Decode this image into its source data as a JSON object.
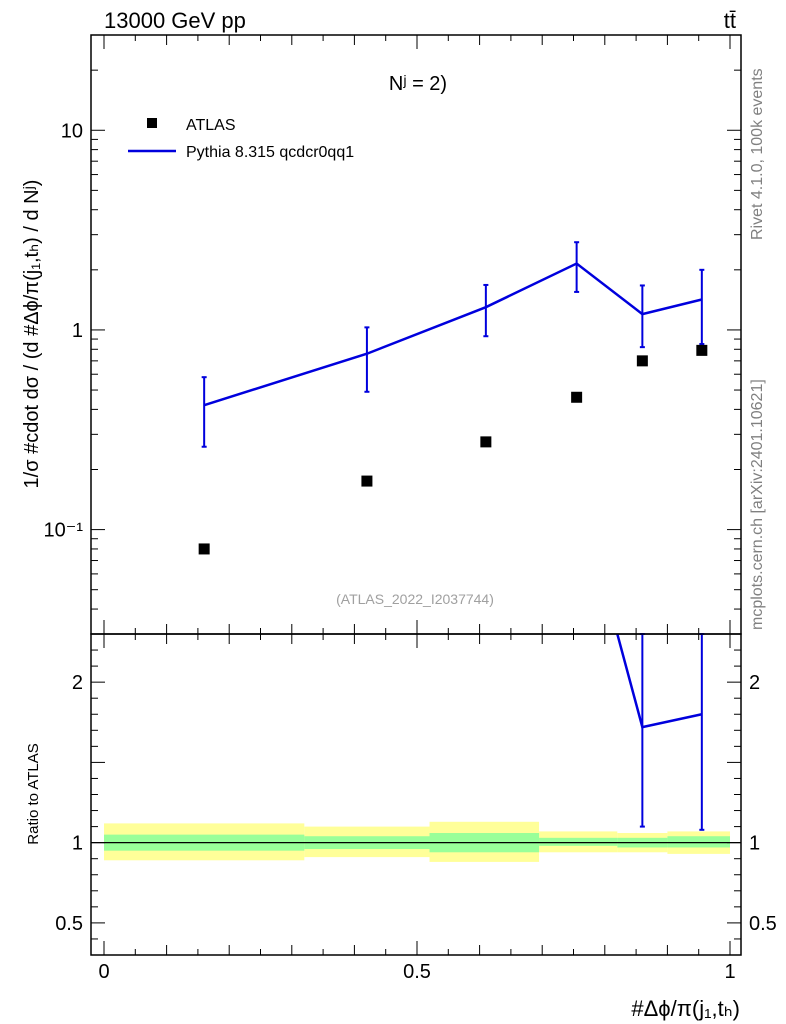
{
  "header": {
    "left": "13000 GeV pp",
    "right": "tt̄"
  },
  "side_labels": {
    "rivet": "Rivet 4.1.0,  100k events",
    "mcplots": "mcplots.cern.ch [arXiv:2401.10621]"
  },
  "chart_data": {
    "type": "scatter",
    "title": "Nʲ = 2)",
    "watermark": "(ATLAS_2022_I2037744)",
    "ylabel": "1/σ #cdot dσ / (d #Δϕ/π(j₁,tₕ) / d Nʲ)",
    "xlabel": "#Δϕ/π(j₁,tₕ)",
    "xlim": [
      0,
      1
    ],
    "ylim": [
      0.03,
      30
    ],
    "yscale": "log",
    "legend": {
      "placement": "top-left",
      "entries": [
        "ATLAS",
        "Pythia 8.315 qcdcr0qq1"
      ]
    },
    "main_yticks": [
      {
        "value": 10,
        "label": "10"
      },
      {
        "value": 1,
        "label": "1"
      },
      {
        "value": 0.1,
        "label": "10⁻¹"
      }
    ],
    "series": [
      {
        "name": "ATLAS",
        "marker": "square",
        "color": "#000000",
        "x": [
          0.16,
          0.42,
          0.61,
          0.755,
          0.86,
          0.955
        ],
        "y": [
          0.08,
          0.175,
          0.275,
          0.46,
          0.7,
          0.79
        ]
      },
      {
        "name": "Pythia 8.315 qcdcr0qq1",
        "marker": "line",
        "color": "#0000dd",
        "x": [
          0.16,
          0.42,
          0.61,
          0.755,
          0.86,
          0.955
        ],
        "y": [
          0.42,
          0.76,
          1.3,
          2.15,
          1.2,
          1.42
        ],
        "yerr_low": [
          0.26,
          0.49,
          0.93,
          1.55,
          0.82,
          0.85
        ],
        "yerr_high": [
          0.58,
          1.03,
          1.68,
          2.75,
          1.67,
          2.0
        ]
      }
    ],
    "ratio": {
      "ylabel": "Ratio to ATLAS",
      "ylim": [
        0.3,
        2.3
      ],
      "yticks": [
        {
          "value": 2,
          "label": "2"
        },
        {
          "value": 1,
          "label": "1"
        },
        {
          "value": 0.5,
          "label": "0.5"
        }
      ],
      "xticks": [
        {
          "value": 0,
          "label": "0"
        },
        {
          "value": 0.5,
          "label": "0.5"
        },
        {
          "value": 1,
          "label": "1"
        }
      ],
      "bands": [
        {
          "x0": 0.0,
          "x1": 0.32,
          "inner": [
            0.95,
            1.05
          ],
          "outer": [
            0.89,
            1.12
          ]
        },
        {
          "x0": 0.32,
          "x1": 0.52,
          "inner": [
            0.96,
            1.04
          ],
          "outer": [
            0.91,
            1.1
          ]
        },
        {
          "x0": 0.52,
          "x1": 0.695,
          "inner": [
            0.94,
            1.06
          ],
          "outer": [
            0.88,
            1.13
          ]
        },
        {
          "x0": 0.695,
          "x1": 0.82,
          "inner": [
            0.98,
            1.03
          ],
          "outer": [
            0.94,
            1.07
          ]
        },
        {
          "x0": 0.82,
          "x1": 0.9,
          "inner": [
            0.97,
            1.03
          ],
          "outer": [
            0.94,
            1.06
          ]
        },
        {
          "x0": 0.9,
          "x1": 1.0,
          "inner": [
            0.97,
            1.04
          ],
          "outer": [
            0.93,
            1.07
          ]
        }
      ],
      "mc_line_x": [
        0.82,
        0.86,
        0.955
      ],
      "mc_line_y": [
        2.3,
        1.72,
        1.8
      ],
      "mc_points": [
        {
          "x": 0.86,
          "y": 1.72,
          "lo": 1.1,
          "hi": 2.3
        },
        {
          "x": 0.955,
          "y": 1.8,
          "lo": 1.08,
          "hi": 2.3
        }
      ]
    }
  }
}
